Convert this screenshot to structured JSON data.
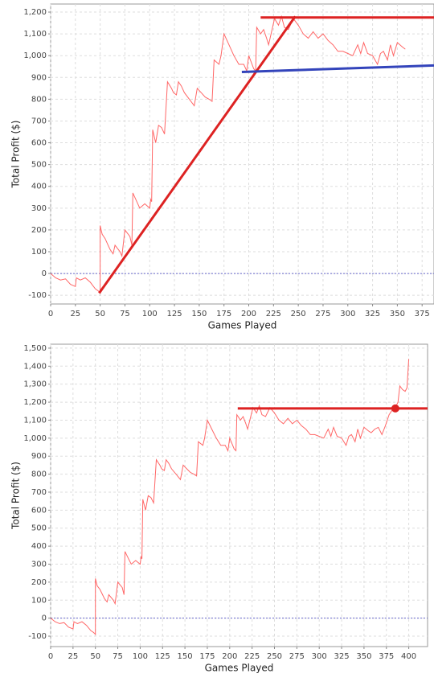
{
  "chart_data": [
    {
      "type": "line",
      "x_label": "Games Played",
      "y_label": "Total Profit ($)",
      "xlim": [
        0,
        387
      ],
      "ylim": [
        -140,
        1237
      ],
      "xticks": [
        0,
        25,
        50,
        75,
        100,
        125,
        150,
        175,
        200,
        225,
        250,
        275,
        300,
        325,
        350,
        375
      ],
      "yticks": [
        -100,
        0,
        100,
        200,
        300,
        400,
        500,
        600,
        700,
        800,
        900,
        {
          "value": 1000,
          "label": "1,000"
        },
        {
          "value": 1100,
          "label": "1,100"
        },
        {
          "value": 1200,
          "label": "1,200"
        }
      ],
      "grid": true,
      "hline": 0,
      "hline_color": "#6666cc",
      "series": [
        {
          "color": "#ff6666",
          "x": [
            0,
            5,
            10,
            15,
            20,
            25,
            26,
            30,
            35,
            40,
            45,
            48,
            50,
            50,
            52,
            55,
            58,
            60,
            63,
            65,
            70,
            72,
            75,
            80,
            82,
            83,
            87,
            90,
            95,
            100,
            101,
            102,
            103,
            106,
            109,
            112,
            115,
            118,
            122,
            124,
            127,
            129,
            132,
            135,
            140,
            145,
            148,
            152,
            156,
            160,
            163,
            165,
            170,
            172,
            175,
            180,
            185,
            190,
            195,
            198,
            200,
            205,
            207,
            208,
            212,
            215,
            218,
            220,
            223,
            226,
            230,
            233,
            236,
            240,
            245,
            250,
            255,
            260,
            265,
            270,
            275,
            280,
            285,
            290,
            295,
            300,
            305,
            310,
            313,
            316,
            320,
            325,
            330,
            333,
            336,
            340,
            343,
            346,
            350,
            355,
            358
          ],
          "values": [
            0,
            -20,
            -30,
            -25,
            -50,
            -60,
            -20,
            -30,
            -20,
            -40,
            -70,
            -80,
            -90,
            220,
            180,
            160,
            130,
            110,
            90,
            130,
            100,
            80,
            200,
            170,
            130,
            370,
            330,
            300,
            320,
            300,
            340,
            330,
            660,
            600,
            680,
            670,
            640,
            880,
            850,
            830,
            820,
            880,
            860,
            830,
            800,
            770,
            850,
            830,
            810,
            800,
            790,
            980,
            960,
            1000,
            1100,
            1050,
            1000,
            960,
            960,
            930,
            1000,
            940,
            930,
            1130,
            1100,
            1120,
            1080,
            1050,
            1110,
            1170,
            1140,
            1180,
            1130,
            1120,
            1170,
            1140,
            1100,
            1080,
            1110,
            1080,
            1100,
            1070,
            1050,
            1020,
            1020,
            1010,
            1000,
            1050,
            1010,
            1060,
            1010,
            1000,
            960,
            1010,
            1020,
            980,
            1050,
            1000,
            1060,
            1040,
            1030
          ]
        },
        {
          "color": "#dd2222",
          "width": 3,
          "x": [
            49,
            247
          ],
          "values": [
            -90,
            1180
          ]
        },
        {
          "color": "#dd2222",
          "width": 3,
          "x": [
            212,
            387
          ],
          "values": [
            1175,
            1175
          ]
        },
        {
          "color": "#3344bb",
          "width": 3,
          "x": [
            193,
            387
          ],
          "values": [
            925,
            955
          ]
        }
      ]
    },
    {
      "type": "line",
      "x_label": "Games Played",
      "y_label": "Total Profit ($)",
      "xlim": [
        0,
        421
      ],
      "ylim": [
        -158,
        1522
      ],
      "xticks": [
        0,
        25,
        50,
        75,
        100,
        125,
        150,
        175,
        200,
        225,
        250,
        275,
        300,
        325,
        350,
        375,
        400
      ],
      "yticks": [
        -100,
        0,
        100,
        200,
        300,
        400,
        500,
        600,
        700,
        800,
        900,
        {
          "value": 1000,
          "label": "1,000"
        },
        {
          "value": 1100,
          "label": "1,100"
        },
        {
          "value": 1200,
          "label": "1,200"
        },
        {
          "value": 1300,
          "label": "1,300"
        },
        {
          "value": 1400,
          "label": "1,400"
        },
        {
          "value": 1500,
          "label": "1,500"
        }
      ],
      "grid": true,
      "hline": 0,
      "hline_color": "#6666cc",
      "series": [
        {
          "color": "#ff6666",
          "x": [
            0,
            5,
            10,
            15,
            20,
            25,
            26,
            30,
            35,
            40,
            45,
            48,
            50,
            50,
            52,
            55,
            58,
            60,
            63,
            65,
            70,
            72,
            75,
            80,
            82,
            83,
            87,
            90,
            95,
            100,
            101,
            102,
            103,
            106,
            109,
            112,
            115,
            118,
            122,
            124,
            127,
            129,
            132,
            135,
            140,
            145,
            148,
            152,
            156,
            160,
            163,
            165,
            170,
            172,
            175,
            180,
            185,
            190,
            195,
            198,
            200,
            205,
            207,
            208,
            212,
            215,
            218,
            220,
            223,
            226,
            230,
            233,
            236,
            240,
            245,
            250,
            255,
            260,
            265,
            270,
            275,
            280,
            285,
            290,
            295,
            300,
            305,
            310,
            313,
            316,
            320,
            325,
            330,
            333,
            336,
            340,
            343,
            346,
            350,
            355,
            358,
            362,
            366,
            370,
            374,
            378,
            382,
            385,
            388,
            390,
            393,
            396,
            398,
            400
          ],
          "values": [
            0,
            -20,
            -30,
            -25,
            -50,
            -60,
            -20,
            -30,
            -20,
            -40,
            -70,
            -80,
            -90,
            220,
            180,
            160,
            130,
            110,
            90,
            130,
            100,
            80,
            200,
            170,
            130,
            370,
            330,
            300,
            320,
            300,
            340,
            330,
            660,
            600,
            680,
            670,
            640,
            880,
            850,
            830,
            820,
            880,
            860,
            830,
            800,
            770,
            850,
            830,
            810,
            800,
            790,
            980,
            960,
            1000,
            1100,
            1050,
            1000,
            960,
            960,
            930,
            1000,
            940,
            930,
            1130,
            1100,
            1120,
            1080,
            1050,
            1110,
            1170,
            1140,
            1180,
            1130,
            1120,
            1170,
            1140,
            1100,
            1080,
            1110,
            1080,
            1100,
            1070,
            1050,
            1020,
            1020,
            1010,
            1000,
            1050,
            1010,
            1060,
            1010,
            1000,
            960,
            1010,
            1020,
            980,
            1050,
            1000,
            1060,
            1040,
            1030,
            1050,
            1060,
            1020,
            1070,
            1130,
            1160,
            1170,
            1200,
            1290,
            1270,
            1260,
            1280,
            1440
          ]
        },
        {
          "color": "#dd2222",
          "width": 3,
          "x": [
            209,
            421
          ],
          "values": [
            1165,
            1165
          ]
        },
        {
          "color": "#dd2222",
          "marker": true,
          "x": [
            385
          ],
          "values": [
            1165
          ]
        }
      ]
    }
  ]
}
